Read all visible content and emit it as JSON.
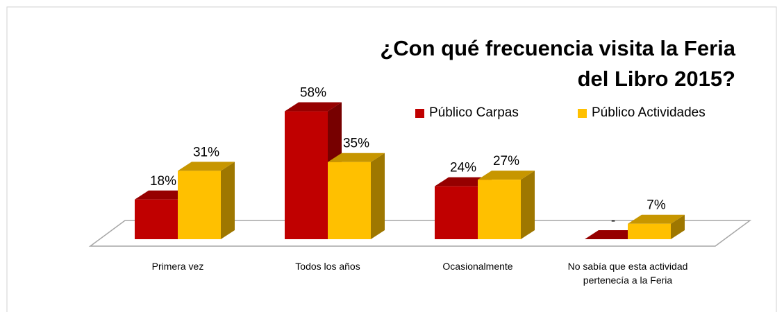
{
  "chart_data": {
    "type": "bar3d",
    "title": "¿Con qué frecuencia visita la Feria del Libro 2015?",
    "categories": [
      "Primera vez",
      "Todos los años",
      "Ocasionalmente",
      "No sabía que esta actividad pertenecía a la Feria"
    ],
    "series": [
      {
        "name": "Público Carpas",
        "color": "#C00000",
        "values": [
          18,
          58,
          24,
          0
        ],
        "value_labels": [
          "18%",
          "58%",
          "24%",
          "-"
        ]
      },
      {
        "name": "Público Actividades",
        "color": "#FFC000",
        "values": [
          31,
          35,
          27,
          7
        ],
        "value_labels": [
          "31%",
          "35%",
          "27%",
          "7%"
        ]
      }
    ],
    "legend": "top-right"
  }
}
